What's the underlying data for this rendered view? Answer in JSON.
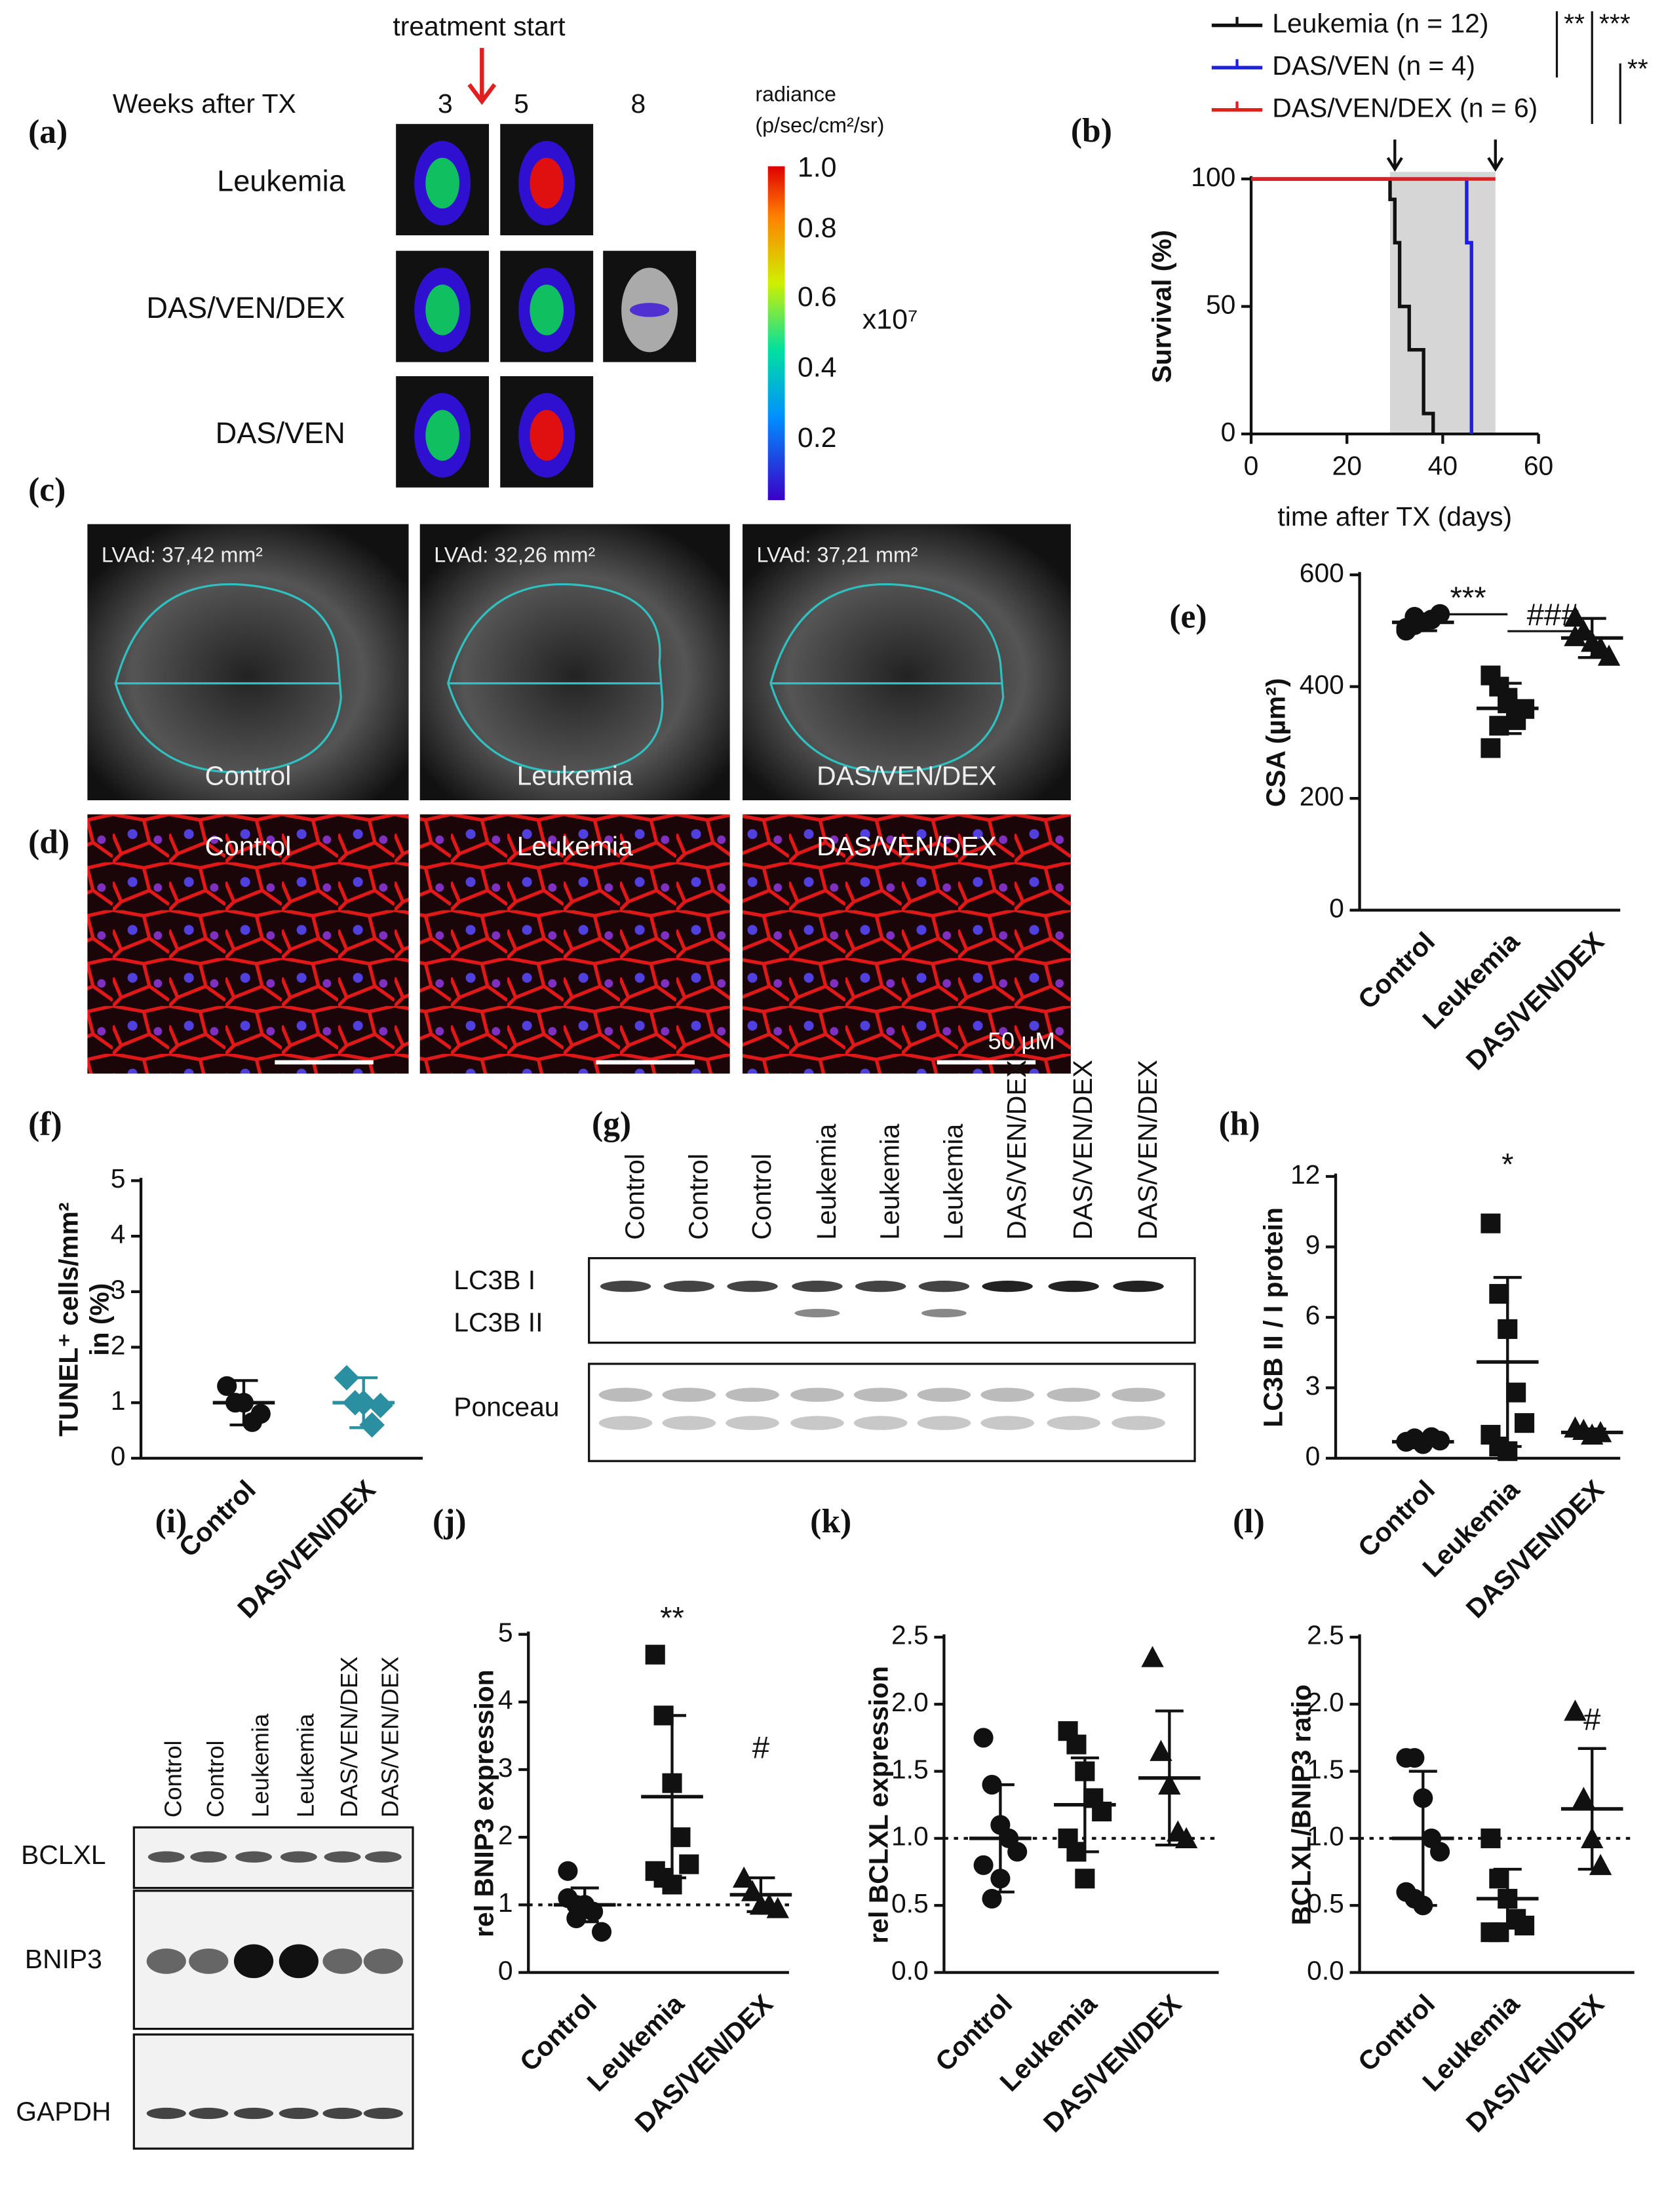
{
  "figure": {
    "a": {
      "label": "(a)",
      "treatment": "treatment start",
      "weeks_title": "Weeks after TX",
      "weeks": [
        "3",
        "5",
        "8"
      ],
      "rows": [
        "Leukemia",
        "DAS/VEN/DEX",
        "DAS/VEN"
      ],
      "colorbar_title": [
        "radiance",
        "(p/sec/cm²/sr)"
      ],
      "colorbar_ticks": [
        "1.0",
        "0.8",
        "0.6",
        "0.4",
        "0.2"
      ],
      "colorbar_unit": "x10⁷"
    },
    "c": {
      "label": "(c)",
      "groups": [
        "Control",
        "Leukemia",
        "DAS/VEN/DEX"
      ],
      "measurements": [
        "LVAd: 37,42 mm²",
        "LVAd: 32,26 mm²",
        "LVAd: 37,21 mm²"
      ]
    },
    "d": {
      "label": "(d)",
      "groups": [
        "Control",
        "Leukemia",
        "DAS/VEN/DEX"
      ],
      "scale": "50 µM"
    },
    "g": {
      "label": "(g)",
      "lanes": [
        "Control",
        "Control",
        "Control",
        "Leukemia",
        "Leukemia",
        "Leukemia",
        "DAS/VEN/DEX",
        "DAS/VEN/DEX",
        "DAS/VEN/DEX"
      ],
      "rows": [
        "LC3B I",
        "LC3B II",
        "Ponceau"
      ]
    },
    "i": {
      "label": "(i)",
      "lanes": [
        "Control",
        "Control",
        "Leukemia",
        "Leukemia",
        "DAS/VEN/DEX",
        "DAS/VEN/DEX"
      ],
      "rows": [
        "BCLXL",
        "BNIP3",
        "GAPDH"
      ]
    }
  },
  "chart_data": [
    {
      "type": "line",
      "label": "(b)",
      "x_label": "time after TX (days)",
      "y_label": "Survival (%)",
      "series": [
        {
          "name": "Leukemia (n = 12)",
          "color": "#111111",
          "x": [
            0,
            29,
            29,
            30,
            30,
            31,
            31,
            33,
            33,
            36,
            36,
            38,
            38
          ],
          "values": [
            100,
            100,
            92,
            92,
            75,
            75,
            50,
            50,
            33,
            33,
            8,
            8,
            0
          ]
        },
        {
          "name": "DAS/VEN (n = 4)",
          "color": "#1f1fe0",
          "x": [
            0,
            45,
            45,
            46,
            46
          ],
          "values": [
            100,
            100,
            75,
            75,
            0
          ]
        },
        {
          "name": "DAS/VEN/DEX (n = 6)",
          "color": "#e02020",
          "x": [
            0,
            51
          ],
          "values": [
            100,
            100
          ]
        }
      ],
      "shaded_range": [
        29,
        51
      ],
      "arrows": [
        30,
        51
      ],
      "xlim": [
        0,
        60
      ],
      "xticks": [
        0,
        20,
        40,
        60
      ],
      "ylim": [
        0,
        100
      ],
      "yticks": [
        0,
        50,
        100
      ],
      "annotations": [
        "**",
        "***",
        "**"
      ]
    },
    {
      "type": "dot",
      "label": "(e)",
      "y_label": "CSA (µm²)",
      "categories": [
        "Control",
        "Leukemia",
        "DAS/VEN/DEX"
      ],
      "points": [
        [
          505,
          510,
          515,
          520,
          530,
          500,
          525
        ],
        [
          420,
          400,
          370,
          340,
          360,
          290,
          330,
          380
        ],
        [
          525,
          500,
          480,
          470,
          455,
          490
        ]
      ],
      "means": [
        515,
        361,
        487
      ],
      "sds": [
        15,
        45,
        35
      ],
      "markers": [
        "circle",
        "square",
        "triangle"
      ],
      "colors": [
        "#111111",
        "#111111",
        "#111111"
      ],
      "ylim": [
        0,
        600
      ],
      "yticks": [
        0,
        200,
        400,
        600
      ],
      "annotations": [
        "***",
        "###"
      ]
    },
    {
      "type": "dot",
      "label": "(f)",
      "y_label": [
        "TUNEL⁺ cells/mm²",
        "in (%)"
      ],
      "categories": [
        "Control",
        "DAS/VEN/DEX"
      ],
      "points": [
        [
          1.3,
          1.0,
          1.0,
          0.65,
          0.8
        ],
        [
          1.45,
          1.0,
          1.0,
          0.6,
          0.95
        ]
      ],
      "means": [
        1.0,
        1.0
      ],
      "sds": [
        0.4,
        0.45
      ],
      "markers": [
        "circle",
        "diamond"
      ],
      "colors": [
        "#111111",
        "#2a8fa0"
      ],
      "ylim": [
        0,
        5
      ],
      "yticks": [
        0,
        1,
        2,
        3,
        4,
        5
      ]
    },
    {
      "type": "dot",
      "label": "(h)",
      "y_label": "LC3B II / I protein",
      "categories": [
        "Control",
        "Leukemia",
        "DAS/VEN/DEX"
      ],
      "points": [
        [
          0.7,
          0.8,
          0.6,
          0.9,
          0.75,
          0.7,
          0.85
        ],
        [
          10,
          7,
          5.5,
          2.8,
          1.5,
          1.0,
          0.5,
          0.3
        ],
        [
          1.3,
          1.2,
          1.0,
          1.1
        ]
      ],
      "means": [
        0.7,
        4.1,
        1.1
      ],
      "sds": [
        0.15,
        3.6,
        0.15
      ],
      "markers": [
        "circle",
        "square",
        "triangle"
      ],
      "colors": [
        "#111111",
        "#111111",
        "#111111"
      ],
      "ylim": [
        0,
        12
      ],
      "yticks": [
        0,
        3,
        6,
        9,
        12
      ],
      "annotations": [
        "*"
      ]
    },
    {
      "type": "dot",
      "label": "(j)",
      "y_label": "rel BNIP3 expression",
      "categories": [
        "Control",
        "Leukemia",
        "DAS/VEN/DEX"
      ],
      "points": [
        [
          1.5,
          1.0,
          1.0,
          0.9,
          0.6,
          1.1,
          0.8
        ],
        [
          4.7,
          3.8,
          2.8,
          2.0,
          1.6,
          1.5,
          1.4,
          1.3
        ],
        [
          1.4,
          1.2,
          1.0,
          1.0,
          0.95
        ]
      ],
      "means": [
        1.0,
        2.6,
        1.15
      ],
      "sds": [
        0.25,
        1.2,
        0.25
      ],
      "markers": [
        "circle",
        "square",
        "triangle"
      ],
      "colors": [
        "#111111",
        "#111111",
        "#111111"
      ],
      "ylim": [
        0,
        5
      ],
      "yticks": [
        0,
        1,
        2,
        3,
        4,
        5
      ],
      "reference_line": 1,
      "annotations": [
        "**",
        "#"
      ]
    },
    {
      "type": "dot",
      "label": "(k)",
      "y_label": "rel BCLXL expression",
      "categories": [
        "Control",
        "Leukemia",
        "DAS/VEN/DEX"
      ],
      "points": [
        [
          1.75,
          1.4,
          1.1,
          1.0,
          0.9,
          0.8,
          0.55,
          0.7
        ],
        [
          1.8,
          1.7,
          1.5,
          1.3,
          1.2,
          1.0,
          0.9,
          0.7
        ],
        [
          2.35,
          1.65,
          1.4,
          1.05,
          1.0
        ]
      ],
      "means": [
        1.0,
        1.25,
        1.45
      ],
      "sds": [
        0.4,
        0.35,
        0.5
      ],
      "markers": [
        "circle",
        "square",
        "triangle"
      ],
      "colors": [
        "#111111",
        "#111111",
        "#111111"
      ],
      "ylim": [
        0,
        2.5
      ],
      "yticks": [
        {
          "value": 0,
          "label": "0.0"
        },
        0.5,
        {
          "value": 1,
          "label": "1.0"
        },
        1.5,
        {
          "value": 2,
          "label": "2.0"
        },
        2.5
      ],
      "reference_line": 1
    },
    {
      "type": "dot",
      "label": "(l)",
      "y_label": "BCLXL/BNIP3 ratio",
      "categories": [
        "Control",
        "Leukemia",
        "DAS/VEN/DEX"
      ],
      "points": [
        [
          1.6,
          1.6,
          1.3,
          1.0,
          0.9,
          0.6,
          0.55,
          0.5
        ],
        [
          1.0,
          0.7,
          0.55,
          0.4,
          0.35,
          0.3,
          0.3
        ],
        [
          1.95,
          1.3,
          1.0,
          0.8
        ]
      ],
      "means": [
        1.0,
        0.55,
        1.22
      ],
      "sds": [
        0.5,
        0.22,
        0.45
      ],
      "markers": [
        "circle",
        "square",
        "triangle"
      ],
      "colors": [
        "#111111",
        "#111111",
        "#111111"
      ],
      "ylim": [
        0,
        2.5
      ],
      "yticks": [
        {
          "value": 0,
          "label": "0.0"
        },
        0.5,
        {
          "value": 1,
          "label": "1.0"
        },
        1.5,
        {
          "value": 2,
          "label": "2.0"
        },
        2.5
      ],
      "reference_line": 1,
      "annotations": [
        "#"
      ]
    }
  ]
}
